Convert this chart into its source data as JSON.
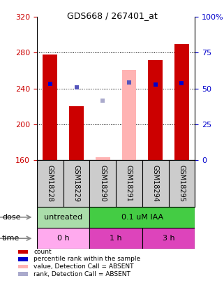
{
  "title": "GDS668 / 267401_at",
  "samples": [
    "GSM18228",
    "GSM18229",
    "GSM18290",
    "GSM18291",
    "GSM18294",
    "GSM18295"
  ],
  "ylim_left": [
    160,
    320
  ],
  "ylim_right": [
    0,
    100
  ],
  "yticks_left": [
    160,
    200,
    240,
    280,
    320
  ],
  "yticks_right": [
    0,
    25,
    50,
    75,
    100
  ],
  "yright_labels": [
    "0",
    "25",
    "50",
    "75",
    "100%"
  ],
  "bars": {
    "counts": [
      278,
      220,
      null,
      null,
      272,
      290
    ],
    "counts_absent": [
      null,
      null,
      163,
      261,
      null,
      null
    ],
    "rank_present": [
      245,
      null,
      null,
      null,
      244,
      246
    ],
    "rank_absent": [
      null,
      241,
      null,
      247,
      null,
      null
    ],
    "rank_absent_light": [
      null,
      null,
      226,
      null,
      null,
      null
    ]
  },
  "bar_width": 0.55,
  "count_color": "#cc0000",
  "count_absent_color": "#ffb3b3",
  "rank_present_color": "#0000cc",
  "rank_absent_color": "#5555bb",
  "rank_absent_light_color": "#aaaacc",
  "dose_row": [
    {
      "label": "untreated",
      "span": [
        0,
        2
      ],
      "color": "#aaddaa"
    },
    {
      "label": "0.1 uM IAA",
      "span": [
        2,
        6
      ],
      "color": "#44cc44"
    }
  ],
  "time_row": [
    {
      "label": "0 h",
      "span": [
        0,
        2
      ],
      "color": "#ffaaee"
    },
    {
      "label": "1 h",
      "span": [
        2,
        4
      ],
      "color": "#dd44bb"
    },
    {
      "label": "3 h",
      "span": [
        4,
        6
      ],
      "color": "#dd44bb"
    }
  ],
  "legend": [
    {
      "color": "#cc0000",
      "label": "count"
    },
    {
      "color": "#0000cc",
      "label": "percentile rank within the sample"
    },
    {
      "color": "#ffb3b3",
      "label": "value, Detection Call = ABSENT"
    },
    {
      "color": "#aaaacc",
      "label": "rank, Detection Call = ABSENT"
    }
  ],
  "left_axis_color": "#cc0000",
  "right_axis_color": "#0000cc",
  "background_color": "#ffffff"
}
